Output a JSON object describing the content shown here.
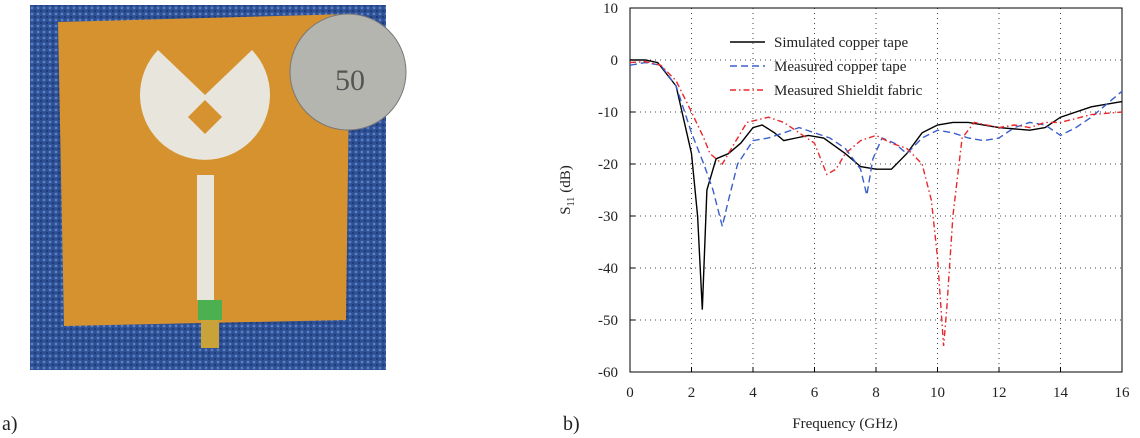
{
  "panel_labels": [
    "a)",
    "b)"
  ],
  "photo": {
    "coin_text": "50"
  },
  "chart_data": {
    "type": "line",
    "xlabel": "Frequency (GHz)",
    "ylabel": {
      "main": "S",
      "sub": "11",
      "unit": "(dB)"
    },
    "xlim": [
      0,
      16
    ],
    "ylim": [
      -60,
      10
    ],
    "xticks": [
      0,
      2,
      4,
      6,
      8,
      10,
      12,
      14,
      16
    ],
    "yticks": [
      10,
      0,
      -10,
      -20,
      -30,
      -40,
      -50,
      -60
    ],
    "grid": true,
    "legend": "upper-left",
    "series": [
      {
        "name": "Simulated copper tape",
        "color": "#000000",
        "style": "solid",
        "x": [
          0,
          0.5,
          0.9,
          1.5,
          2.0,
          2.2,
          2.35,
          2.5,
          2.8,
          3.2,
          3.6,
          4.0,
          4.3,
          4.7,
          5.0,
          5.4,
          5.8,
          6.3,
          7.0,
          7.5,
          8.0,
          8.5,
          9.0,
          9.5,
          10.0,
          10.5,
          11.0,
          12.0,
          13.0,
          13.5,
          14.0,
          15.0,
          16.0
        ],
        "values": [
          0,
          0,
          -0.5,
          -5,
          -18,
          -30,
          -48,
          -25,
          -19,
          -18,
          -16,
          -13,
          -12.5,
          -14,
          -15.5,
          -15,
          -14.5,
          -15,
          -18,
          -20.5,
          -21,
          -21,
          -18,
          -14,
          -12.5,
          -12,
          -12,
          -13,
          -13.5,
          -13,
          -11,
          -9,
          -8
        ]
      },
      {
        "name": "Measured copper tape",
        "color": "#3a5fcd",
        "style": "dashed",
        "x": [
          0,
          0.5,
          1.0,
          1.5,
          2.0,
          2.4,
          2.7,
          3.0,
          3.2,
          3.5,
          4.0,
          4.5,
          5.0,
          5.5,
          6.0,
          6.5,
          7.0,
          7.5,
          7.7,
          7.9,
          8.2,
          8.6,
          9.0,
          9.5,
          10.0,
          10.5,
          11.0,
          11.5,
          12.0,
          12.5,
          13.0,
          13.5,
          14.0,
          14.5,
          15.0,
          16.0
        ],
        "values": [
          -1,
          -0.5,
          -1,
          -5,
          -14,
          -20,
          -25,
          -32,
          -27,
          -20,
          -15.5,
          -15,
          -14,
          -13,
          -14,
          -15,
          -17,
          -21,
          -26,
          -19,
          -15,
          -16,
          -18,
          -15,
          -13.5,
          -14,
          -15,
          -15.5,
          -15,
          -13,
          -12,
          -12.5,
          -14.5,
          -13,
          -11,
          -6
        ]
      },
      {
        "name": "Measured Shieldit fabric",
        "color": "#e8282b",
        "style": "dashdot",
        "x": [
          0,
          0.5,
          1.0,
          1.5,
          2.0,
          2.4,
          2.6,
          3.0,
          3.4,
          3.8,
          4.5,
          5.0,
          5.5,
          6.0,
          6.4,
          6.7,
          7.0,
          7.5,
          8.0,
          8.5,
          9.0,
          9.5,
          9.8,
          10.0,
          10.2,
          10.3,
          10.5,
          10.8,
          11.2,
          12.0,
          12.5,
          13.0,
          13.5,
          14.0,
          15.0,
          16.0
        ],
        "values": [
          -0.5,
          -0.3,
          -1,
          -4,
          -10,
          -15,
          -18,
          -20,
          -16,
          -12,
          -11,
          -12,
          -14,
          -16,
          -22,
          -21,
          -18,
          -15.5,
          -14.5,
          -16,
          -17,
          -20,
          -27,
          -38,
          -55,
          -48,
          -30,
          -15,
          -12,
          -13,
          -12.5,
          -13,
          -12,
          -12,
          -10.5,
          -10
        ]
      }
    ]
  }
}
